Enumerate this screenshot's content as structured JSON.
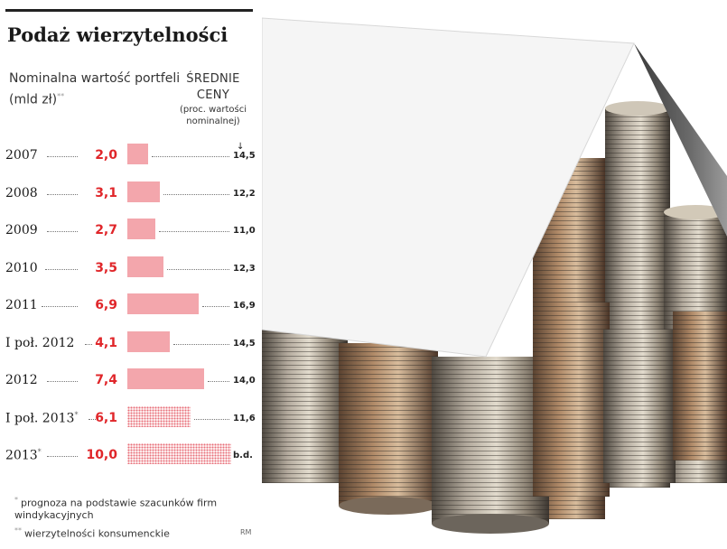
{
  "title": "Podaż wierzytelności",
  "left_header": "Nominalna wartość portfeli (mld zł)",
  "left_header_mark": "**",
  "right_header_title": "ŚREDNIE CENY",
  "right_header_sub": "(proc. wartości nominalnej)",
  "arrow": "↓",
  "footnote1_mark": "*",
  "footnote1": "prognoza na podstawie szacunków firm windykacyjnych",
  "footnote2_mark": "**",
  "footnote2": "wierzytelności konsumenckie",
  "credit": "RM",
  "colors": {
    "bar": "#f3a6ac",
    "bar_forecast_dots": "#e8707a",
    "value_text": "#e0262a"
  },
  "chart_data": {
    "type": "bar",
    "orientation": "horizontal",
    "categories": [
      "2007",
      "2008",
      "2009",
      "2010",
      "2011",
      "I poł. 2012",
      "2012",
      "I poł. 2013",
      "2013"
    ],
    "category_marks": [
      "",
      "",
      "",
      "",
      "",
      "",
      "",
      "*",
      "*"
    ],
    "values": [
      2.0,
      3.1,
      2.7,
      3.5,
      6.9,
      4.1,
      7.4,
      6.1,
      10.0
    ],
    "value_labels": [
      "2,0",
      "3,1",
      "2,7",
      "3,5",
      "6,9",
      "4,1",
      "7,4",
      "6,1",
      "10,0"
    ],
    "forecast": [
      false,
      false,
      false,
      false,
      false,
      false,
      false,
      true,
      true
    ],
    "secondary_values": [
      "14,5",
      "12,2",
      "11,0",
      "12,3",
      "16,9",
      "14,5",
      "14,0",
      "11,6",
      "b.d."
    ],
    "xlim": [
      0,
      10
    ]
  }
}
